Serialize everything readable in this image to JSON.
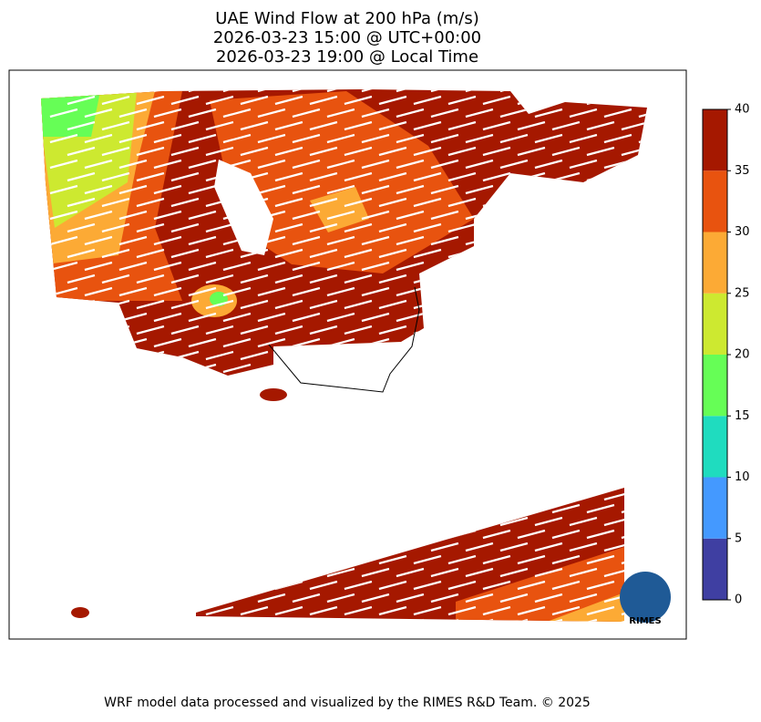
{
  "title": [
    "UAE Wind Flow at 200 hPa (m/s)",
    "2026-03-23 15:00 @ UTC+00:00",
    "2026-03-23 19:00 @ Local Time"
  ],
  "colorbar": {
    "lim": [
      0,
      40
    ],
    "ticks": [
      0,
      5,
      10,
      15,
      20,
      25,
      30,
      35,
      40
    ],
    "colors": [
      "#3f3fa2",
      "#4499ff",
      "#1fdcbf",
      "#66fe56",
      "#cde930",
      "#fcaa35",
      "#e8530f",
      "#a51800"
    ]
  },
  "logo": "RIMES",
  "footer": "WRF model data processed and visualized by the RIMES R&D Team. © 2025"
}
